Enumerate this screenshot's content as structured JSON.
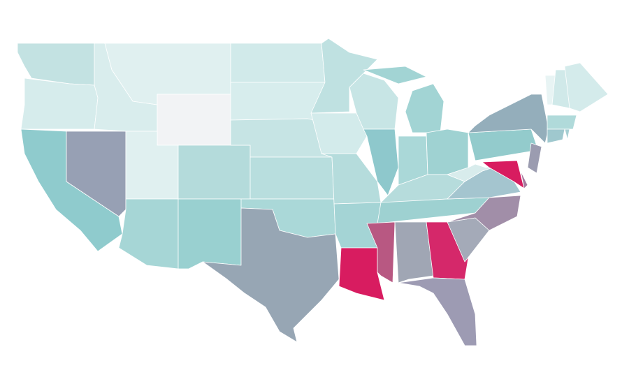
{
  "regions": [
    {
      "color": "#c3e2e2"
    },
    {
      "color": "#d6ecec"
    },
    {
      "color": "#8fcbcd"
    },
    {
      "color": "#97a0b4"
    },
    {
      "color": "#d9eded"
    },
    {
      "color": "#e0f0f0"
    },
    {
      "color": "#f2f3f5"
    },
    {
      "color": "#e0f0f0"
    },
    {
      "color": "#a6d6d6"
    },
    {
      "color": "#b4dbdb"
    },
    {
      "color": "#99d0d0"
    },
    {
      "color": "#d1eaea"
    },
    {
      "color": "#d7eded"
    },
    {
      "color": "#c6e4e4"
    },
    {
      "color": "#b8dede"
    },
    {
      "color": "#aad8d8"
    },
    {
      "color": "#97a6b4"
    },
    {
      "color": "#bfe1e1"
    },
    {
      "color": "#d3ebeb"
    },
    {
      "color": "#b5dcdc"
    },
    {
      "color": "#a4d4d5"
    },
    {
      "color": "#d81c60"
    },
    {
      "color": "#c7e5e5"
    },
    {
      "color": "#8ec8cc"
    },
    {
      "color": "#a2d4d4"
    },
    {
      "color": "#aad8d8"
    },
    {
      "color": "#9fd2d2"
    },
    {
      "color": "#b6dcdc"
    },
    {
      "color": "#9ed1d1"
    },
    {
      "color": "#b85882"
    },
    {
      "color": "#a0a6b4"
    },
    {
      "color": "#d5286a"
    },
    {
      "color": "#9d9bb3"
    },
    {
      "color": "#a4aab8"
    },
    {
      "color": "#a18ea8"
    },
    {
      "color": "#a4c5cf"
    },
    {
      "color": "#d8ecec"
    },
    {
      "color": "#93cbcc"
    },
    {
      "color": "#94aebb"
    },
    {
      "color": "#d81c60"
    },
    {
      "color": "#a47a9e"
    },
    {
      "color": "#9b9cb0"
    },
    {
      "color": "#e8f4f4"
    },
    {
      "color": "#d0e9e9"
    },
    {
      "color": "#d4ebeb"
    },
    {
      "color": "#b0dada"
    },
    {
      "color": "#9fc8ce"
    },
    {
      "color": "#a7cfd3"
    }
  ]
}
